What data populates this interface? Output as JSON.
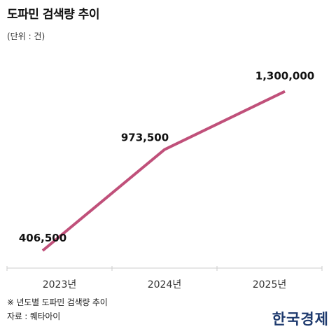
{
  "header": {
    "title": "도파민 검색량 추이",
    "unit": "(단위 : 건)"
  },
  "footer": {
    "note": "※ 년도별 도파민 검색량 추이",
    "source": "자료 : 퀘타아이",
    "logo": "한국경제"
  },
  "colors": {
    "line": "#c0507a",
    "axis": "#cccccc"
  },
  "chart_data": {
    "type": "line",
    "title": "도파민 검색량 추이",
    "unit": "(단위 : 건)",
    "categories": [
      "2023년",
      "2024년",
      "2025년"
    ],
    "series": [
      {
        "values": [
          406500,
          973500,
          1300000
        ],
        "labels": [
          "406,500",
          "973,500",
          "1,300,000"
        ]
      }
    ],
    "ylim": [
      320000,
      1420000
    ],
    "grid": false,
    "legend": "none"
  }
}
